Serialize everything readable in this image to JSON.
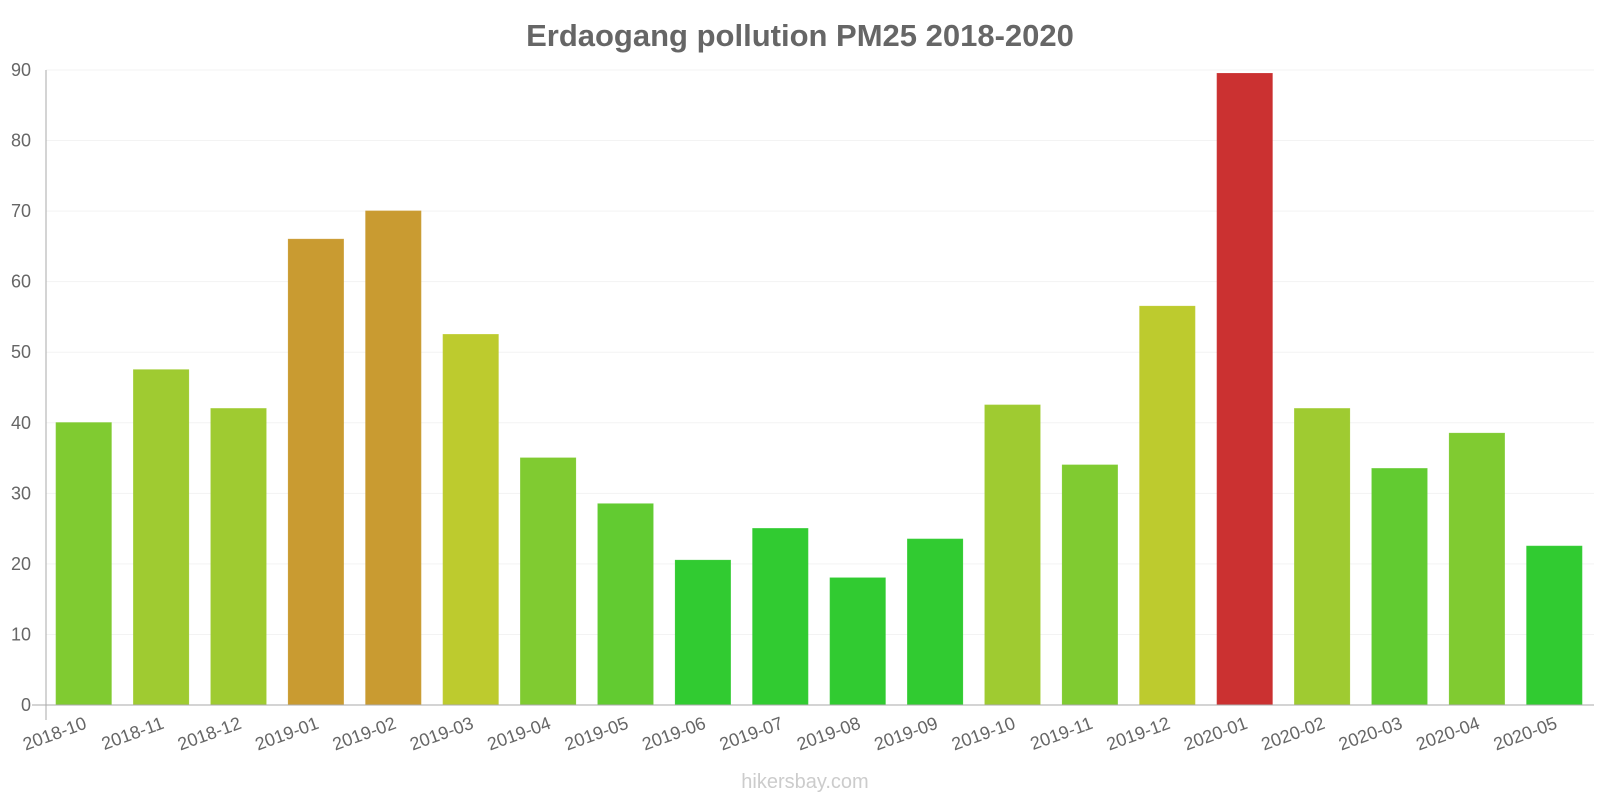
{
  "chart_data": {
    "type": "bar",
    "title": "Erdaogang pollution PM25 2018-2020",
    "xlabel": "",
    "ylabel": "",
    "ylim": [
      0,
      90
    ],
    "yticks": [
      0,
      10,
      20,
      30,
      40,
      50,
      60,
      70,
      80,
      90
    ],
    "grid": true,
    "categories": [
      "2018-10",
      "2018-11",
      "2018-12",
      "2019-01",
      "2019-02",
      "2019-03",
      "2019-04",
      "2019-05",
      "2019-06",
      "2019-07",
      "2019-08",
      "2019-09",
      "2019-10",
      "2019-11",
      "2019-12",
      "2020-01",
      "2020-02",
      "2020-03",
      "2020-04",
      "2020-05"
    ],
    "values": [
      40,
      47.5,
      42,
      66,
      70,
      52.5,
      35,
      28.5,
      20.5,
      25,
      18,
      23.5,
      42.5,
      34,
      56.5,
      89.5,
      42,
      33.5,
      38.5,
      22.5
    ],
    "bar_colors": [
      "#8bdd35",
      "#addd35",
      "#addd35",
      "#dba935",
      "#dba935",
      "#cddd32",
      "#8bdd35",
      "#6bdd35",
      "#35dd35",
      "#35dd35",
      "#35dd35",
      "#35dd35",
      "#addd35",
      "#8bdd35",
      "#cddd32",
      "#dd3535",
      "#addd35",
      "#6bdd35",
      "#8bdd35",
      "#35dd35"
    ]
  },
  "watermark": "hikersbay.com"
}
